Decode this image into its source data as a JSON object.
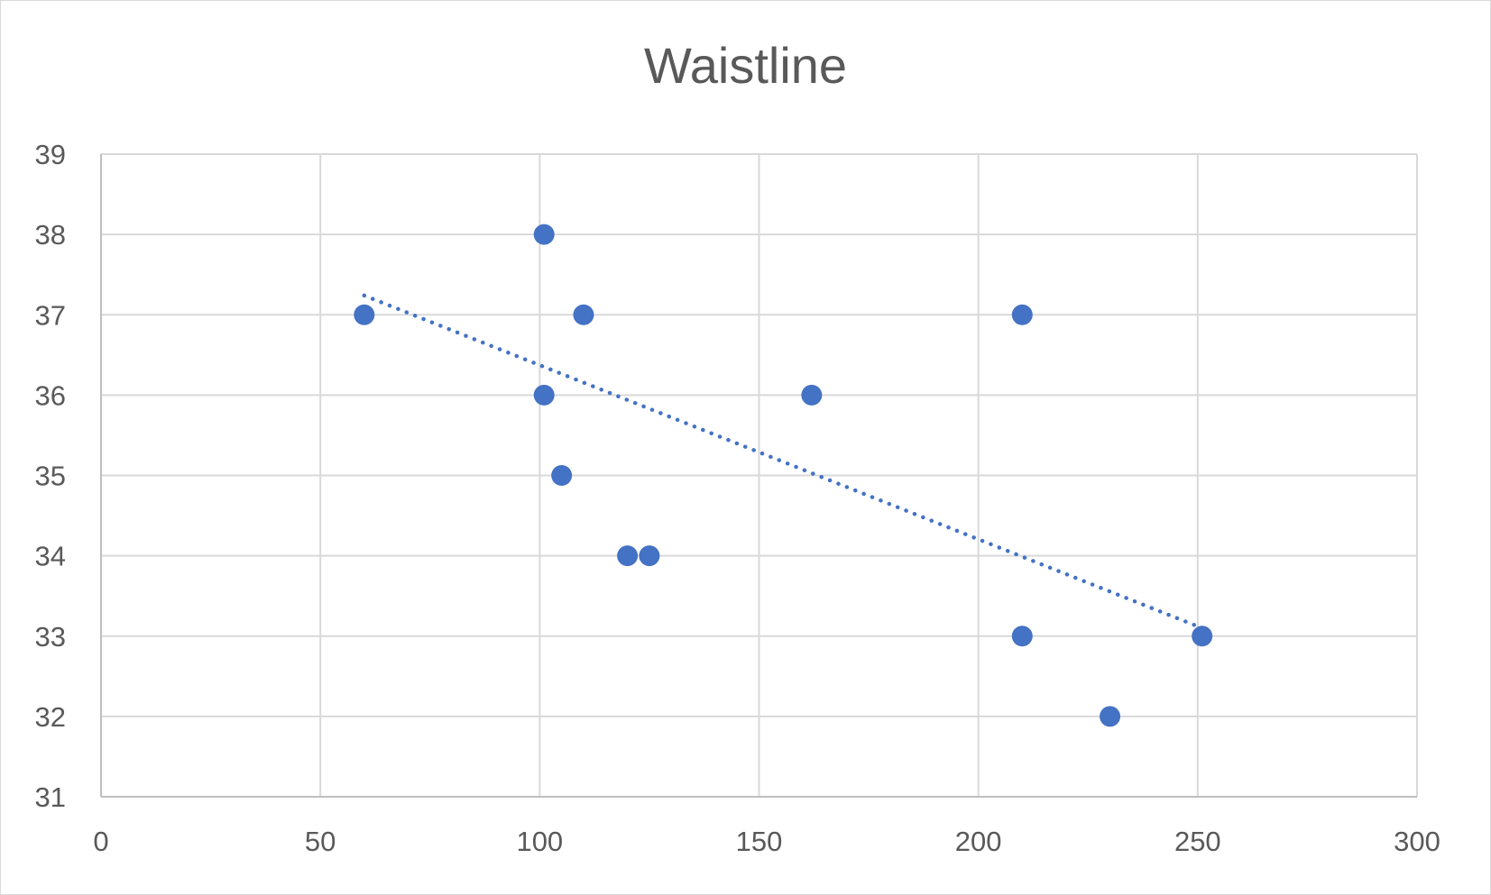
{
  "chart_data": {
    "type": "scatter",
    "title": "Waistline",
    "xlabel": "",
    "ylabel": "",
    "xlim": [
      0,
      300
    ],
    "ylim": [
      31,
      39
    ],
    "xticks": [
      "0",
      "50",
      "100",
      "150",
      "200",
      "250",
      "300"
    ],
    "yticks": [
      "31",
      "32",
      "33",
      "34",
      "35",
      "36",
      "37",
      "38",
      "39"
    ],
    "grid": true,
    "legend": "none",
    "marker_color": "#4472C4",
    "gridline_color": "#d9d9d9",
    "series": [
      {
        "points": [
          {
            "x": 60,
            "y": 37
          },
          {
            "x": 101,
            "y": 38
          },
          {
            "x": 110,
            "y": 37
          },
          {
            "x": 101,
            "y": 36
          },
          {
            "x": 105,
            "y": 35
          },
          {
            "x": 120,
            "y": 34
          },
          {
            "x": 125,
            "y": 34
          },
          {
            "x": 162,
            "y": 36
          },
          {
            "x": 210,
            "y": 37
          },
          {
            "x": 210,
            "y": 33
          },
          {
            "x": 230,
            "y": 32
          },
          {
            "x": 251,
            "y": 33
          }
        ]
      }
    ],
    "trendline": {
      "type": "linear",
      "style": "dotted",
      "color": "#4472C4",
      "x_range": [
        60,
        251
      ],
      "y_values": [
        37.24,
        33.1
      ]
    }
  }
}
